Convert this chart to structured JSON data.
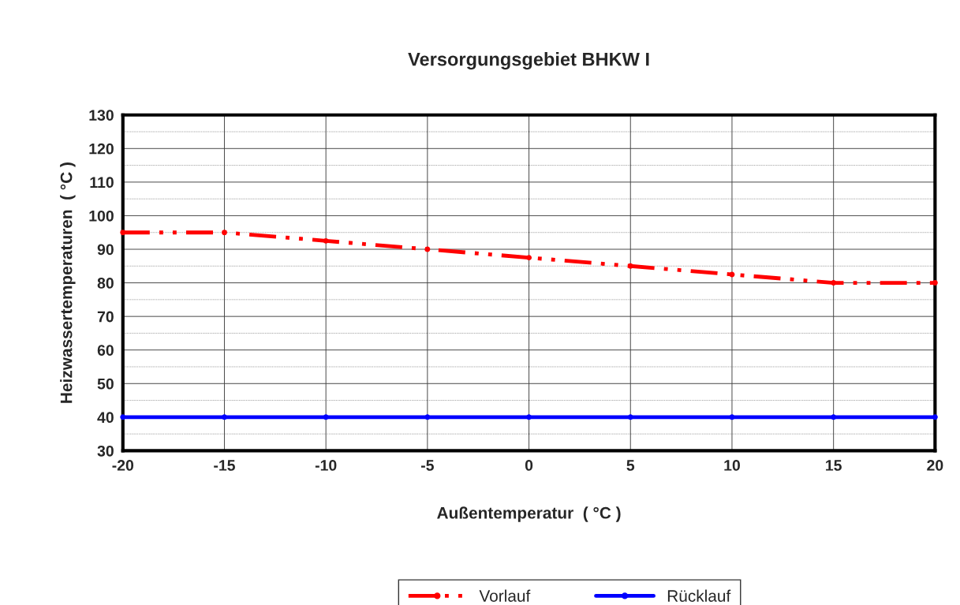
{
  "chart_data": {
    "type": "line",
    "title": "Versorgungsgebiet BHKW I",
    "xlabel": "Außentemperatur  ( °C )",
    "ylabel": "Heizwassertemperaturen  ( °C )",
    "x": [
      -20,
      -15,
      -10,
      -5,
      0,
      5,
      10,
      15,
      20
    ],
    "series": [
      {
        "name": "Vorlauf",
        "color": "#ff0000",
        "values": [
          95,
          95,
          92.5,
          90,
          87.5,
          85,
          82.5,
          80,
          80
        ],
        "line_style": "dashed"
      },
      {
        "name": "Rücklauf",
        "color": "#0000ff",
        "values": [
          40,
          40,
          40,
          40,
          40,
          40,
          40,
          40,
          40
        ],
        "line_style": "solid"
      }
    ],
    "xlim": [
      -20,
      20
    ],
    "xticks": [
      -20,
      -15,
      -10,
      -5,
      0,
      5,
      10,
      15,
      20
    ],
    "ylim": [
      30,
      130
    ],
    "yticks": [
      30,
      {
        "value": 35,
        "label": null
      },
      40,
      {
        "value": 45,
        "label": null
      },
      50,
      {
        "value": 55,
        "label": null
      },
      60,
      {
        "value": 65,
        "label": null
      },
      70,
      {
        "value": 75,
        "label": null
      },
      80,
      {
        "value": 85,
        "label": null
      },
      90,
      {
        "value": 95,
        "label": null
      },
      100,
      {
        "value": 105,
        "label": null
      },
      110,
      {
        "value": 115,
        "label": null
      },
      120,
      {
        "value": 125,
        "label": null
      },
      130
    ],
    "grid": true,
    "legend": "bottom",
    "marker": "circle"
  }
}
